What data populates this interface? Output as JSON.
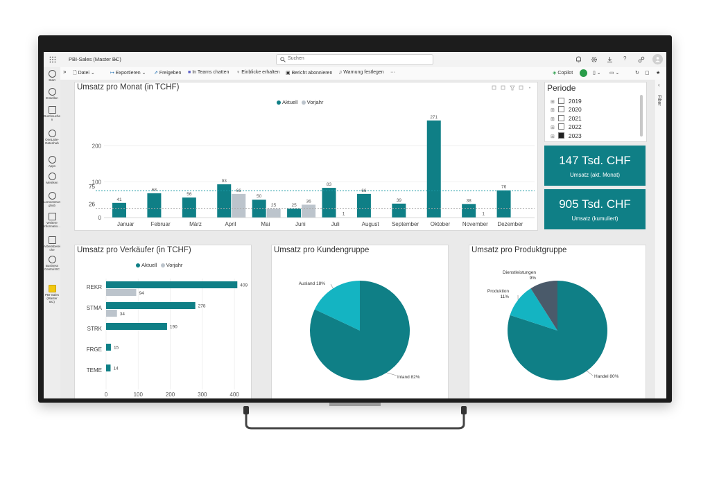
{
  "app": {
    "report_name": "PBI-Sales (Master BC)",
    "search_placeholder": "Suchen"
  },
  "toolbar": {
    "file": "Datei",
    "export": "Exportieren",
    "share": "Freigeben",
    "teams": "In Teams chatten",
    "insights": "Einblicke erhalten",
    "subscribe": "Bericht abonnieren",
    "alert": "Warnung festlegen",
    "more": "···",
    "copilot": "Copilot"
  },
  "rail": {
    "items": [
      {
        "label": "Start",
        "icon": "home-icon"
      },
      {
        "label": "Erstellen",
        "icon": "plus-icon"
      },
      {
        "label": "Durchsuche n",
        "icon": "folder-icon"
      },
      {
        "label": "OneLake-Datenhub",
        "icon": "onelake-icon"
      },
      {
        "label": "Apps",
        "icon": "apps-icon"
      },
      {
        "label": "Metriken",
        "icon": "trophy-icon"
      },
      {
        "label": "Lernzentrum ghub",
        "icon": "learn-icon"
      },
      {
        "label": "Weitere Informatio...",
        "icon": "book-icon"
      },
      {
        "label": "Arbeitsberei che",
        "icon": "workspace-icon"
      },
      {
        "label": "Business Central BC",
        "icon": "people-icon"
      },
      {
        "label": "PBI-Sales (Master BC)",
        "icon": "report-icon"
      }
    ]
  },
  "filter_pane_label": "Filter",
  "slicer": {
    "title": "Periode",
    "items": [
      {
        "label": "2019",
        "checked": false
      },
      {
        "label": "2020",
        "checked": false
      },
      {
        "label": "2021",
        "checked": false
      },
      {
        "label": "2022",
        "checked": false
      },
      {
        "label": "2023",
        "checked": true
      }
    ]
  },
  "kpis": [
    {
      "value": "147 Tsd. CHF",
      "label": "Umsatz (akt. Monat)"
    },
    {
      "value": "905 Tsd. CHF",
      "label": "Umsatz (kumuliert)"
    }
  ],
  "colors": {
    "teal": "#0f7f86",
    "grey": "#bcc4cc",
    "cyan": "#14b4c2",
    "slate": "#4a5a6a",
    "kpi": "#0f7f86"
  },
  "chart_data": [
    {
      "id": "monthly",
      "type": "bar",
      "title": "Umsatz pro Monat (in TCHF)",
      "categories": [
        "Januar",
        "Februar",
        "März",
        "April",
        "Mai",
        "Juni",
        "Juli",
        "August",
        "September",
        "Oktober",
        "November",
        "Dezember"
      ],
      "series": [
        {
          "name": "Aktuell",
          "values": [
            41,
            68,
            56,
            93,
            50,
            25,
            83,
            66,
            39,
            271,
            38,
            76
          ]
        },
        {
          "name": "Vorjahr",
          "values": [
            null,
            null,
            null,
            66,
            25,
            36,
            1,
            null,
            null,
            null,
            1,
            null
          ]
        }
      ],
      "reference_lines": [
        {
          "label": "75",
          "value": 75
        },
        {
          "label": "26",
          "value": 26
        }
      ],
      "yticks": [
        0,
        100,
        200
      ],
      "ylim": [
        0,
        290
      ],
      "legend": "top-center"
    },
    {
      "id": "salesperson",
      "type": "bar",
      "orientation": "horizontal",
      "title": "Umsatz pro Verkäufer (in TCHF)",
      "categories": [
        "REKR",
        "STMA",
        "STRK",
        "FRGE",
        "TEME"
      ],
      "series": [
        {
          "name": "Aktuell",
          "values": [
            409,
            278,
            190,
            15,
            14
          ]
        },
        {
          "name": "Vorjahr",
          "values": [
            94,
            34,
            null,
            null,
            null
          ]
        }
      ],
      "xticks": [
        0,
        100,
        200,
        300,
        400
      ],
      "xlim": [
        0,
        430
      ],
      "legend": "top-center"
    },
    {
      "id": "customer",
      "type": "pie",
      "title": "Umsatz pro Kundengruppe",
      "slices": [
        {
          "label": "Inland 82%",
          "value": 82
        },
        {
          "label": "Ausland 18%",
          "value": 18
        }
      ]
    },
    {
      "id": "product",
      "type": "pie",
      "title": "Umsatz pro Produktgruppe",
      "slices": [
        {
          "label": "Handel 80%",
          "value": 80
        },
        {
          "label": "Produktion 11%",
          "value": 11
        },
        {
          "label": "Dienstleistungen 9%",
          "value": 9
        }
      ]
    }
  ]
}
